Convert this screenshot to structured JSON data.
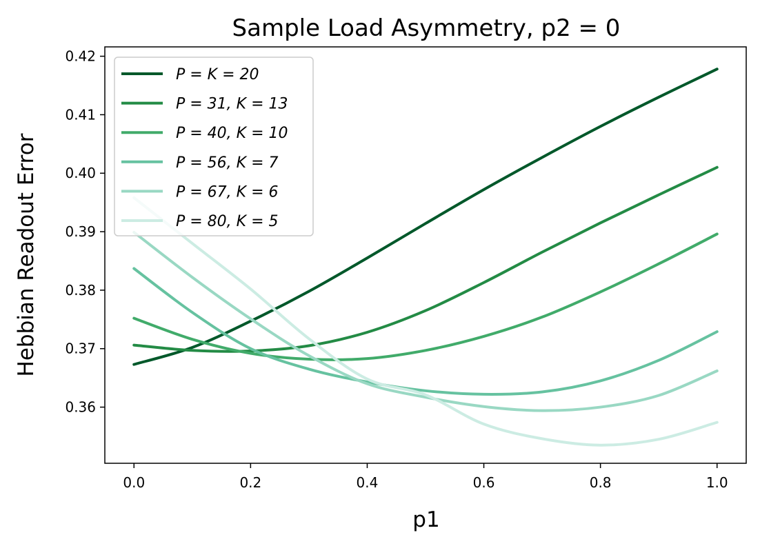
{
  "chart_data": {
    "type": "line",
    "title": "Sample Load Asymmetry, p2 = 0",
    "xlabel": "p1",
    "ylabel": "Hebbian Readout Error",
    "xlim": [
      -0.05,
      1.05
    ],
    "ylim": [
      0.3504,
      0.4216
    ],
    "xticks": [
      0.0,
      0.2,
      0.4,
      0.6,
      0.8,
      1.0
    ],
    "xtick_labels": [
      "0.0",
      "0.2",
      "0.4",
      "0.6",
      "0.8",
      "1.0"
    ],
    "yticks": [
      0.36,
      0.37,
      0.38,
      0.39,
      0.4,
      0.41,
      0.42
    ],
    "ytick_labels": [
      "0.36",
      "0.37",
      "0.38",
      "0.39",
      "0.40",
      "0.41",
      "0.42"
    ],
    "grid": false,
    "legend_position": "upper-left",
    "x": [
      0.0,
      0.1,
      0.2,
      0.3,
      0.4,
      0.5,
      0.6,
      0.7,
      0.8,
      0.9,
      1.0
    ],
    "series": [
      {
        "name": "P = K = 20",
        "color": "#00582a",
        "values": [
          0.3673,
          0.3702,
          0.3747,
          0.3798,
          0.3855,
          0.3914,
          0.3972,
          0.4027,
          0.408,
          0.413,
          0.4178
        ]
      },
      {
        "name": "P = 31, K = 13",
        "color": "#238b45",
        "values": [
          0.3706,
          0.3697,
          0.3696,
          0.3705,
          0.3728,
          0.3765,
          0.3813,
          0.3865,
          0.3915,
          0.3963,
          0.401
        ]
      },
      {
        "name": "P = 40, K = 10",
        "color": "#41ab6a",
        "values": [
          0.3752,
          0.3716,
          0.3692,
          0.3682,
          0.3683,
          0.3697,
          0.3721,
          0.3754,
          0.3797,
          0.3845,
          0.3896
        ]
      },
      {
        "name": "P = 56, K = 7",
        "color": "#66c2a0",
        "values": [
          0.3837,
          0.3762,
          0.37,
          0.3665,
          0.3643,
          0.3628,
          0.3622,
          0.3626,
          0.3645,
          0.368,
          0.3729
        ]
      },
      {
        "name": "P = 67, K = 6",
        "color": "#99d8c3",
        "values": [
          0.3899,
          0.3822,
          0.3751,
          0.3688,
          0.364,
          0.3617,
          0.3601,
          0.3594,
          0.36,
          0.362,
          0.3662
        ]
      },
      {
        "name": "P = 80, K = 5",
        "color": "#ccece3",
        "values": [
          0.3958,
          0.388,
          0.3802,
          0.3717,
          0.3648,
          0.3621,
          0.3571,
          0.3546,
          0.3535,
          0.3545,
          0.3574
        ]
      }
    ]
  }
}
